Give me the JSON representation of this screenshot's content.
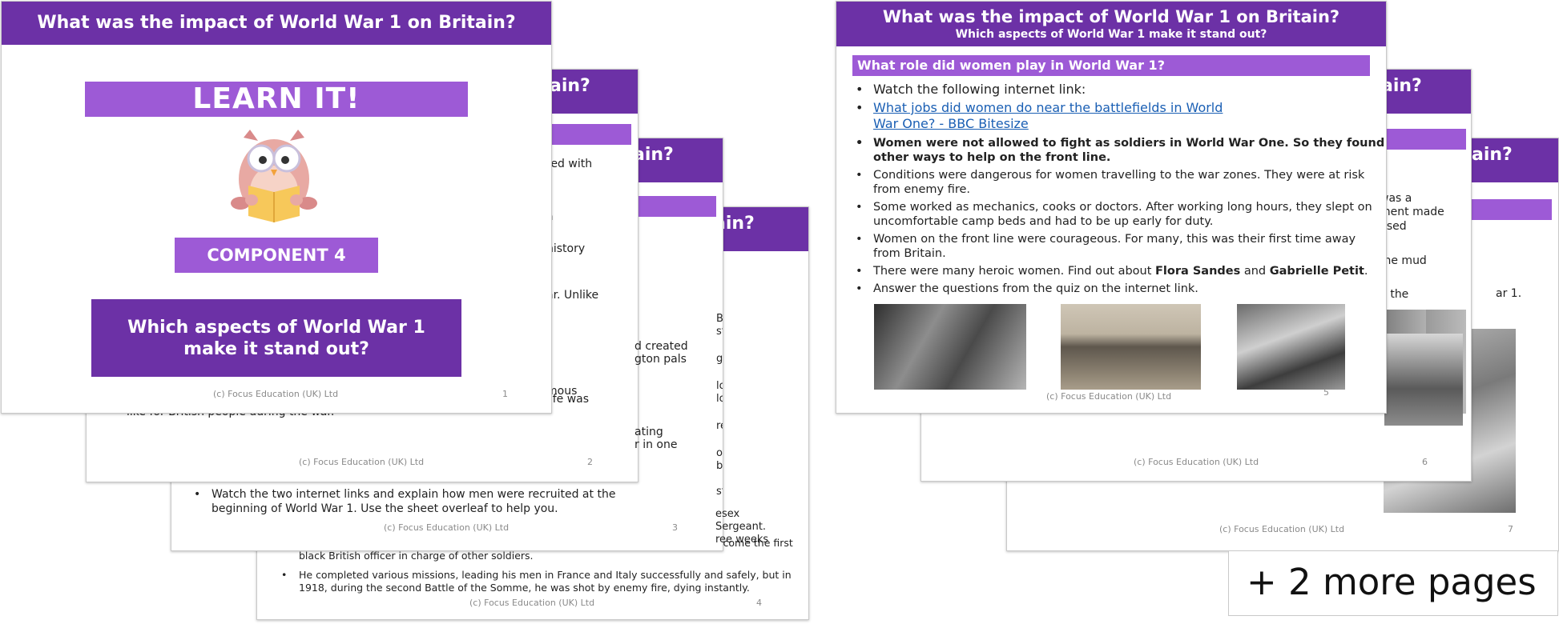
{
  "footer_copyright": "(c) Focus Education (UK) Ltd",
  "title": "What was the impact of World War 1 on Britain?",
  "subtitle": "Which aspects of World War 1 make it stand out?",
  "slide1": {
    "learn_it": "LEARN IT!",
    "component": "COMPONENT 4",
    "question": "Which aspects of World War 1 make it stand out?",
    "page": "1",
    "owl_icon": "owl-reading-book-icon"
  },
  "slide2": {
    "page": "2",
    "frags": [
      "ain?",
      "red with",
      "a",
      "history",
      "ar. Unlike",
      "d created",
      "gton pals",
      "mous",
      "t life was",
      "like for British people during the war.",
      "ating",
      "r in one"
    ]
  },
  "slide3": {
    "page": "3",
    "frags": [
      "ain?",
      "Britain,",
      "stone. They",
      "g ill for a",
      "look after",
      "look after",
      "ren, so",
      "or a trial at",
      "be a painter",
      "sfer to",
      "esex",
      "Sergeant.",
      "ree weeks"
    ],
    "bullet": "Watch the two internet links and explain how men were recruited at the beginning of World War 1. Use the sheet overleaf to help you."
  },
  "slide4": {
    "page": "4",
    "frags": [
      "ain?"
    ],
    "bullets": [
      "there and then was sent back to Britain on leave, where he trained in Scotland to become the first black British officer in charge of other soldiers.",
      "He completed various missions, leading his men in France and Italy successfully and safely, but in 1918, during the second Battle of the Somme, he was shot by enemy fire, dying instantly."
    ]
  },
  "slide5": {
    "page": "5",
    "section_heading": "What role did women play in World War 1?",
    "bullets": [
      {
        "id": "watch",
        "text": "Watch the following internet link:"
      },
      {
        "id": "link",
        "text": "What jobs did women do near the battlefields in World War One? - BBC Bitesize"
      },
      {
        "id": "bold",
        "text": "Women were not allowed to fight as soldiers in World War One. So they found other ways to help on the front line."
      },
      {
        "id": "conditions",
        "text": "Conditions were dangerous for women travelling to the war zones. They were at risk from enemy fire."
      },
      {
        "id": "mechanics",
        "text": "Some worked as mechanics, cooks or doctors. After working long hours, they slept on uncomfortable camp beds and had to be up early for duty."
      },
      {
        "id": "courageous",
        "text": "Women on the front line were courageous. For many, this was their first time away from Britain."
      },
      {
        "id": "heroic_pre",
        "text": "There were many heroic women. Find out about "
      },
      {
        "id": "quiz",
        "text": "Answer the questions from the quiz on the internet link."
      }
    ],
    "name1": "Flora Sandes",
    "and": " and ",
    "name2": "Gabrielle Petit",
    "period": "."
  },
  "slide6": {
    "page": "6",
    "frags": [
      "ain?",
      "was a",
      "ment made",
      "used",
      "the mud",
      "n the"
    ]
  },
  "slide7": {
    "page": "7",
    "frags": [
      "ain?",
      "ar 1."
    ]
  },
  "more_pages": "+ 2 more pages",
  "colors": {
    "header": "#6c31a6",
    "bar": "#9d5ad6",
    "link": "#1a5fb4"
  }
}
